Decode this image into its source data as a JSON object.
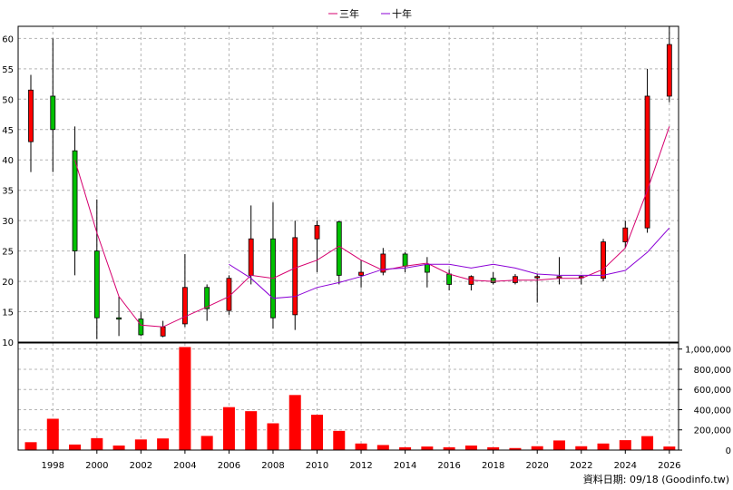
{
  "chart_data": {
    "type": "candlestick",
    "legend": [
      {
        "name": "三年",
        "color": "#d6006f"
      },
      {
        "name": "十年",
        "color": "#8b00d6"
      }
    ],
    "legend_position": "top-center",
    "x_ticks": [
      "1998",
      "2000",
      "2002",
      "2004",
      "2006",
      "2008",
      "2010",
      "2012",
      "2014",
      "2016",
      "2018",
      "2020",
      "2022",
      "2024",
      "2026"
    ],
    "price_axis": {
      "ticks": [
        "10",
        "15",
        "20",
        "25",
        "30",
        "35",
        "40",
        "45",
        "50",
        "55",
        "60"
      ],
      "ylim": [
        10,
        62
      ],
      "position": "left"
    },
    "volume_axis": {
      "ticks": [
        "0",
        "200,000",
        "400,000",
        "600,000",
        "800,000",
        "1,000,000"
      ],
      "ylim": [
        0,
        1060000
      ],
      "position": "right"
    },
    "grid": true,
    "up_color": "#ff0000",
    "down_color": "#00c000",
    "candles": [
      {
        "year": 1997,
        "open": 43,
        "high": 54,
        "low": 38,
        "close": 51.5
      },
      {
        "year": 1998,
        "open": 50.5,
        "high": 60,
        "low": 38,
        "close": 45
      },
      {
        "year": 1999,
        "open": 41.5,
        "high": 45.5,
        "low": 21,
        "close": 25
      },
      {
        "year": 2000,
        "open": 25,
        "high": 33.5,
        "low": 10.5,
        "close": 14
      },
      {
        "year": 2001,
        "open": 14,
        "high": 17.5,
        "low": 11,
        "close": 13.8
      },
      {
        "year": 2002,
        "open": 13.8,
        "high": 15,
        "low": 11,
        "close": 11.2
      },
      {
        "year": 2003,
        "open": 11,
        "high": 13.5,
        "low": 10.8,
        "close": 12.5
      },
      {
        "year": 2004,
        "open": 13,
        "high": 24.5,
        "low": 12.5,
        "close": 19
      },
      {
        "year": 2005,
        "open": 19,
        "high": 19.5,
        "low": 13.5,
        "close": 15.5
      },
      {
        "year": 2006,
        "open": 15.2,
        "high": 21,
        "low": 14.5,
        "close": 20.5
      },
      {
        "year": 2007,
        "open": 21,
        "high": 32.5,
        "low": 19.5,
        "close": 27
      },
      {
        "year": 2008,
        "open": 27,
        "high": 33,
        "low": 12.2,
        "close": 14
      },
      {
        "year": 2009,
        "open": 14.5,
        "high": 30,
        "low": 12,
        "close": 27.2
      },
      {
        "year": 2010,
        "open": 27,
        "high": 30,
        "low": 21.5,
        "close": 29.2
      },
      {
        "year": 2011,
        "open": 29.8,
        "high": 30,
        "low": 19.5,
        "close": 21
      },
      {
        "year": 2012,
        "open": 21,
        "high": 23.5,
        "low": 19,
        "close": 21.5
      },
      {
        "year": 2013,
        "open": 21.5,
        "high": 25.5,
        "low": 21,
        "close": 24.5
      },
      {
        "year": 2014,
        "open": 24.5,
        "high": 24.8,
        "low": 21.5,
        "close": 22.5
      },
      {
        "year": 2015,
        "open": 22.8,
        "high": 24,
        "low": 19,
        "close": 21.5
      },
      {
        "year": 2016,
        "open": 21.2,
        "high": 22,
        "low": 18.5,
        "close": 19.5
      },
      {
        "year": 2017,
        "open": 19.5,
        "high": 21,
        "low": 18.5,
        "close": 20.8
      },
      {
        "year": 2018,
        "open": 20.5,
        "high": 21.5,
        "low": 19.5,
        "close": 19.8
      },
      {
        "year": 2019,
        "open": 19.8,
        "high": 21.2,
        "low": 19.5,
        "close": 20.8
      },
      {
        "year": 2020,
        "open": 20.8,
        "high": 21.2,
        "low": 16.5,
        "close": 20.8
      },
      {
        "year": 2021,
        "open": 20.8,
        "high": 24,
        "low": 19.5,
        "close": 20.8
      },
      {
        "year": 2022,
        "open": 20.8,
        "high": 21,
        "low": 19.5,
        "close": 20.8
      },
      {
        "year": 2023,
        "open": 20.5,
        "high": 27,
        "low": 20,
        "close": 26.5
      },
      {
        "year": 2024,
        "open": 26.5,
        "high": 30,
        "low": 25.5,
        "close": 28.8
      },
      {
        "year": 2025,
        "open": 28.8,
        "high": 55,
        "low": 28,
        "close": 50.5
      },
      {
        "year": 2026,
        "open": 50.5,
        "high": 62,
        "low": 49.5,
        "close": 59
      }
    ],
    "series": [
      {
        "name": "三年",
        "points": [
          [
            1999,
            40
          ],
          [
            2000,
            28
          ],
          [
            2001,
            17.5
          ],
          [
            2002,
            12.8
          ],
          [
            2003,
            12.5
          ],
          [
            2004,
            14.2
          ],
          [
            2005,
            15.8
          ],
          [
            2006,
            17.5
          ],
          [
            2007,
            21
          ],
          [
            2008,
            20.5
          ],
          [
            2009,
            22.2
          ],
          [
            2010,
            23.5
          ],
          [
            2011,
            25.8
          ],
          [
            2012,
            23.5
          ],
          [
            2013,
            21.8
          ],
          [
            2014,
            22.5
          ],
          [
            2015,
            23
          ],
          [
            2016,
            21.2
          ],
          [
            2017,
            20.2
          ],
          [
            2018,
            20
          ],
          [
            2019,
            20.2
          ],
          [
            2020,
            20.2
          ],
          [
            2021,
            20.5
          ],
          [
            2022,
            20.5
          ],
          [
            2023,
            22
          ],
          [
            2024,
            25.5
          ],
          [
            2025,
            35
          ],
          [
            2026,
            45.5
          ]
        ]
      },
      {
        "name": "十年",
        "points": [
          [
            2006,
            22.8
          ],
          [
            2007,
            20.5
          ],
          [
            2008,
            17.2
          ],
          [
            2009,
            17.5
          ],
          [
            2010,
            19
          ],
          [
            2011,
            19.8
          ],
          [
            2012,
            20.8
          ],
          [
            2013,
            22
          ],
          [
            2014,
            22.2
          ],
          [
            2015,
            22.8
          ],
          [
            2016,
            22.8
          ],
          [
            2017,
            22.2
          ],
          [
            2018,
            22.8
          ],
          [
            2019,
            22.2
          ],
          [
            2020,
            21.2
          ],
          [
            2021,
            21
          ],
          [
            2022,
            21
          ],
          [
            2023,
            21
          ],
          [
            2024,
            21.8
          ],
          [
            2025,
            24.8
          ],
          [
            2026,
            28.8
          ]
        ]
      }
    ],
    "volume": [
      {
        "year": 1997,
        "value": 78000
      },
      {
        "year": 1998,
        "value": 310000
      },
      {
        "year": 1999,
        "value": 55000
      },
      {
        "year": 2000,
        "value": 118000
      },
      {
        "year": 2001,
        "value": 45000
      },
      {
        "year": 2002,
        "value": 105000
      },
      {
        "year": 2003,
        "value": 115000
      },
      {
        "year": 2004,
        "value": 1020000
      },
      {
        "year": 2005,
        "value": 140000
      },
      {
        "year": 2006,
        "value": 425000
      },
      {
        "year": 2007,
        "value": 385000
      },
      {
        "year": 2008,
        "value": 265000
      },
      {
        "year": 2009,
        "value": 545000
      },
      {
        "year": 2010,
        "value": 350000
      },
      {
        "year": 2011,
        "value": 190000
      },
      {
        "year": 2012,
        "value": 65000
      },
      {
        "year": 2013,
        "value": 50000
      },
      {
        "year": 2014,
        "value": 28000
      },
      {
        "year": 2015,
        "value": 35000
      },
      {
        "year": 2016,
        "value": 28000
      },
      {
        "year": 2017,
        "value": 45000
      },
      {
        "year": 2018,
        "value": 28000
      },
      {
        "year": 2019,
        "value": 20000
      },
      {
        "year": 2020,
        "value": 38000
      },
      {
        "year": 2021,
        "value": 95000
      },
      {
        "year": 2022,
        "value": 38000
      },
      {
        "year": 2023,
        "value": 65000
      },
      {
        "year": 2024,
        "value": 98000
      },
      {
        "year": 2025,
        "value": 138000
      },
      {
        "year": 2026,
        "value": 35000
      }
    ],
    "credit": "資料日期: 09/18 (Goodinfo.tw)"
  }
}
